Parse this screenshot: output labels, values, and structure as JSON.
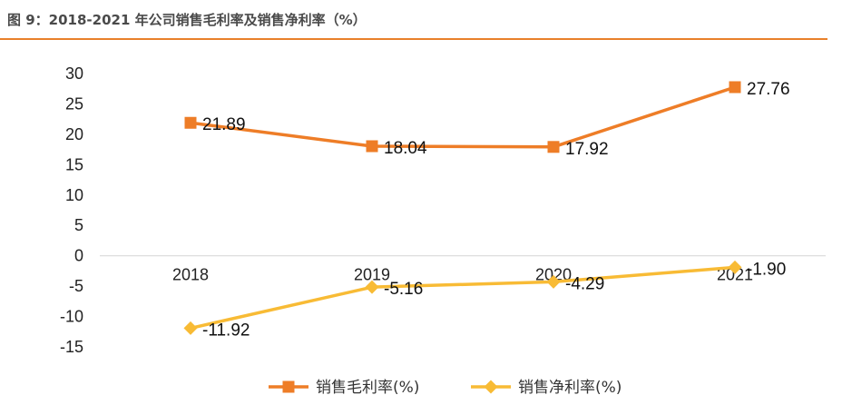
{
  "header": {
    "title": "图 9：2018-2021 年公司销售毛利率及销售净利率（%）",
    "rule_color": "#e8802b"
  },
  "chart_data": {
    "type": "line",
    "title": "",
    "xlabel": "",
    "ylabel": "",
    "categories": [
      "2018",
      "2019",
      "2020",
      "2021"
    ],
    "ylim": [
      -15,
      30
    ],
    "yticks": [
      30,
      25,
      20,
      15,
      10,
      5,
      0,
      -5,
      -10,
      -15
    ],
    "grid": false,
    "legend_position": "bottom",
    "series": [
      {
        "name": "销售毛利率(%)",
        "values": [
          21.89,
          18.04,
          17.92,
          27.76
        ],
        "labels": [
          "21.89",
          "18.04",
          "17.92",
          "27.76"
        ],
        "color": "#ee7d27",
        "marker": "square"
      },
      {
        "name": "销售净利率(%)",
        "values": [
          -11.92,
          -5.16,
          -4.29,
          -1.9
        ],
        "labels": [
          "-11.92",
          "-5.16",
          "-4.29",
          "-1.90"
        ],
        "color": "#f8bb35",
        "marker": "diamond"
      }
    ]
  }
}
